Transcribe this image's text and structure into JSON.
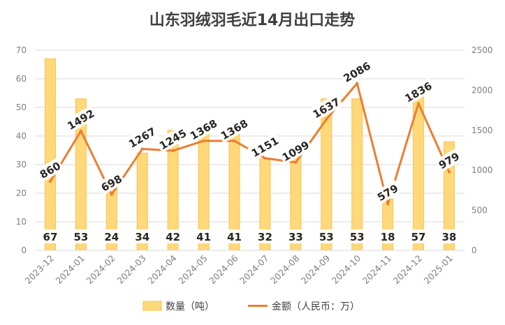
{
  "chart_data": {
    "type": "bar",
    "title": "山东羽绒羽毛近14月出口走势",
    "categories": [
      "2023-12",
      "2024-01",
      "2024-02",
      "2024-03",
      "2024-04",
      "2024-05",
      "2024-06",
      "2024-07",
      "2024-08",
      "2024-09",
      "2024-10",
      "2024-11",
      "2024-12",
      "2025-01"
    ],
    "series": [
      {
        "name": "数量（吨）",
        "type": "bar",
        "axis": "left",
        "color": "#FFD87A",
        "values": [
          67,
          53,
          24,
          34,
          42,
          41,
          41,
          32,
          33,
          53,
          53,
          18,
          57,
          38
        ]
      },
      {
        "name": "金额（人民币：万）",
        "type": "line",
        "axis": "right",
        "color": "#ED7D31",
        "values": [
          860,
          1492,
          698,
          1267,
          1245,
          1368,
          1368,
          1151,
          1099,
          1637,
          2086,
          579,
          1836,
          979
        ]
      }
    ],
    "y_left": {
      "min": 0,
      "max": 70,
      "step": 10,
      "ticks": [
        "0",
        "10",
        "20",
        "30",
        "40",
        "50",
        "60",
        "70"
      ]
    },
    "y_right": {
      "min": 0,
      "max": 2500,
      "step": 500,
      "ticks": [
        "0",
        "500",
        "1000",
        "1500",
        "2000",
        "2500"
      ]
    },
    "grid": true,
    "legend_position": "bottom"
  }
}
